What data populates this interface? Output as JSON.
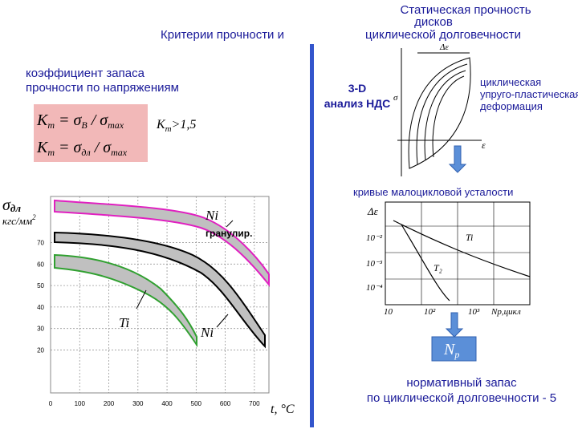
{
  "header": {
    "left_title": "Критерии прочности и",
    "right_title": [
      "Статическая прочность",
      "дисков",
      "циклической долговечности"
    ]
  },
  "criteria": {
    "text": [
      "коэффициент запаса",
      "прочности по напряжениям"
    ],
    "formula_1": [
      "K",
      "m",
      " = σ",
      "B",
      " / σ",
      "max"
    ],
    "formula_2": [
      "K",
      "m",
      " = σ",
      "дл",
      " / σ",
      "max"
    ],
    "condition": [
      "K",
      "m",
      ">1,5"
    ]
  },
  "stress_chart": {
    "y_label": [
      "σ",
      "дл",
      "кгс/мм",
      "2"
    ],
    "x_label": "t, °C",
    "xlim": [
      0,
      750
    ],
    "ylim": [
      0,
      90
    ],
    "xticks": [
      0,
      100,
      200,
      300,
      400,
      500,
      600,
      700
    ],
    "yticks": [
      20,
      30,
      40,
      50,
      60,
      70
    ],
    "curve_labels": [
      "Ni",
      "гранулир.",
      "Ti",
      "Ni"
    ]
  },
  "analysis": {
    "label": [
      "3-D",
      "анализ НДС"
    ],
    "deformation": [
      "циклическая",
      "упруго-пластическая",
      "деформация"
    ],
    "hysteresis_axes": [
      "Δε",
      "σ",
      "ε"
    ]
  },
  "fatigue": {
    "title": "кривые малоцикловой усталости",
    "y_label": "Δε",
    "y_ticks": [
      "10⁻²",
      "10⁻³",
      "10⁻⁴"
    ],
    "x_ticks": [
      "10",
      "10²",
      "10³"
    ],
    "x_label": "Nр,цикл",
    "curve_labels": [
      "Ti",
      "T₂"
    ]
  },
  "result": {
    "box": [
      "N",
      "p"
    ],
    "text": [
      "нормативный запас",
      "по циклической долговечности - 5"
    ]
  }
}
